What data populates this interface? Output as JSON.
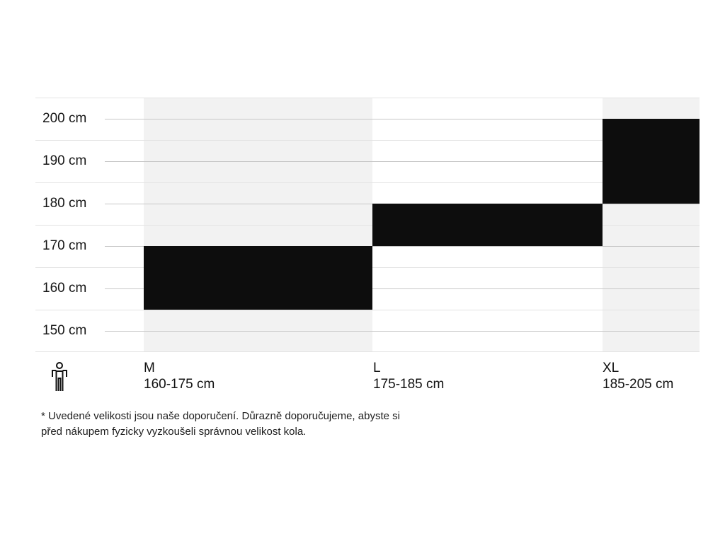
{
  "chart_data": {
    "type": "bar",
    "subtype": "vertical-range-bars",
    "title": "",
    "xlabel": "",
    "ylabel": "",
    "categories": [
      "M",
      "L",
      "XL"
    ],
    "series": [
      {
        "label": "M",
        "range_label": "160-175 cm",
        "min_cm": 160,
        "max_cm": 175
      },
      {
        "label": "L",
        "range_label": "175-185 cm",
        "min_cm": 175,
        "max_cm": 185
      },
      {
        "label": "XL",
        "range_label": "185-205 cm",
        "min_cm": 185,
        "max_cm": 205
      }
    ],
    "y_axis": {
      "unit": "cm",
      "top_cm": 210,
      "bottom_cm": 150,
      "tick_labels": [
        "200 cm",
        "190 cm",
        "180 cm",
        "170 cm",
        "160 cm",
        "150 cm"
      ],
      "tick_values": [
        200,
        190,
        180,
        170,
        160,
        150
      ]
    },
    "grid": true,
    "legend_position": "none",
    "colors": {
      "bar": "#0d0d0d",
      "alt_column_bg": "#f2f2f2",
      "row_line": "#e3e3e3",
      "tick_line": "#c7c7c7",
      "text": "#1a1a1a"
    }
  },
  "icons": {
    "person": "person-height-icon"
  },
  "footnote": {
    "lines": [
      "* Uvedené velikosti jsou naše doporučení. Důrazně doporučujeme, abyste si",
      "před nákupem fyzicky vyzkoušeli správnou velikost kola."
    ]
  }
}
